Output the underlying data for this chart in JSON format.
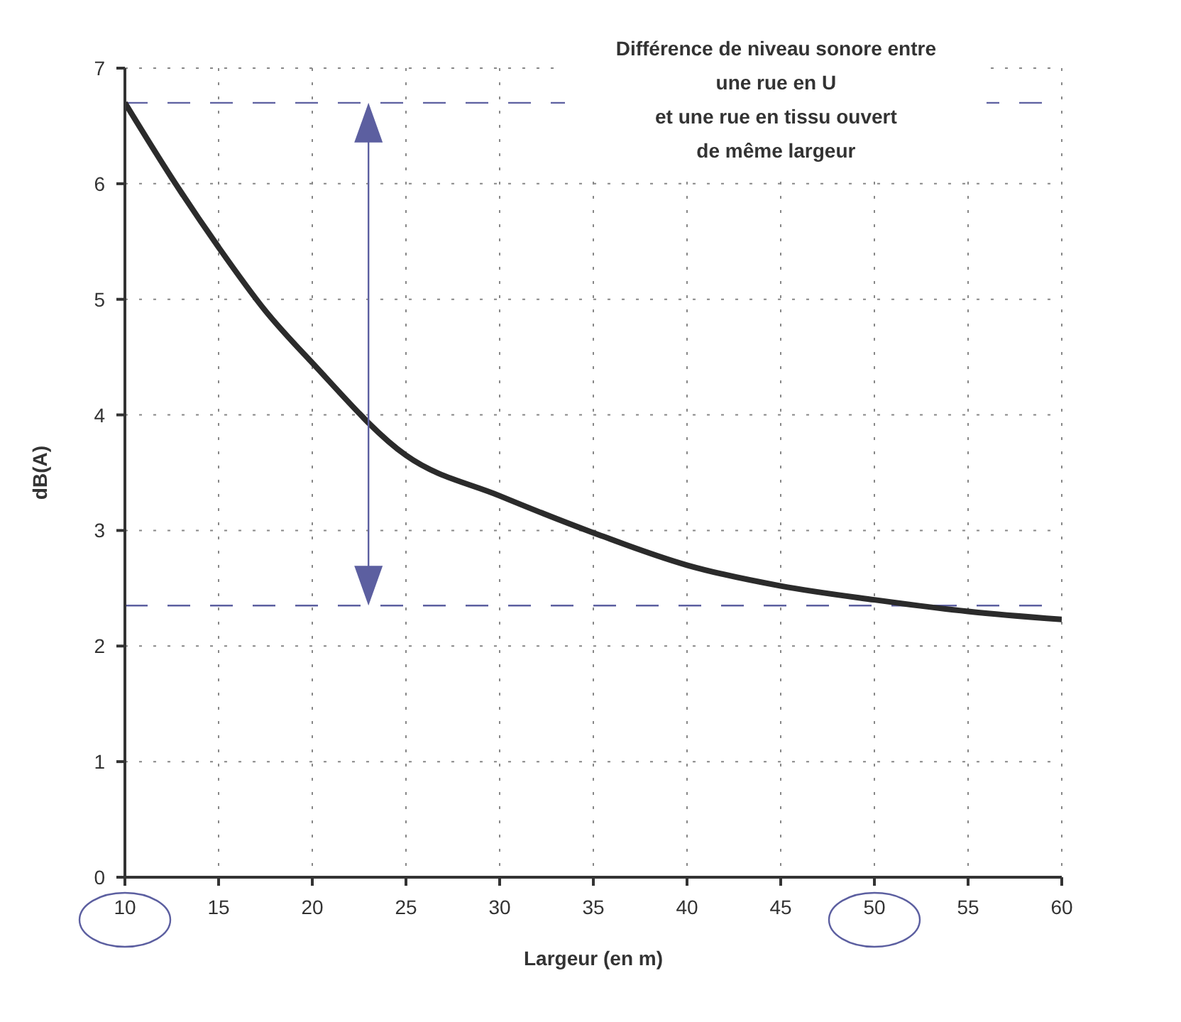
{
  "chart_data": {
    "type": "line",
    "title": "Différence de niveau sonore entre\nune rue en U\net une rue en tissu ouvert\nde même largeur",
    "xlabel": "Largeur (en m)",
    "ylabel": "dB(A)",
    "x": [
      10,
      12.5,
      15,
      17.5,
      20,
      25,
      30,
      35,
      40,
      45,
      50,
      55,
      60
    ],
    "series": [
      {
        "color": "#2b2b2b",
        "values": [
          6.7,
          6.05,
          5.45,
          4.9,
          4.45,
          3.65,
          3.3,
          2.98,
          2.7,
          2.52,
          2.4,
          2.3,
          2.23
        ]
      }
    ],
    "xlim": [
      10,
      60
    ],
    "xticks": [
      10,
      15,
      20,
      25,
      30,
      35,
      40,
      45,
      50,
      55,
      60
    ],
    "ylim": [
      0,
      7
    ],
    "yticks": [
      0,
      1,
      2,
      3,
      4,
      5,
      6,
      7
    ],
    "grid": true,
    "marker": "none",
    "line_style": "solid",
    "ref_lines": [
      {
        "axis": "y",
        "value": 6.7,
        "color": "#5c5fa0",
        "line_style": "dashed"
      },
      {
        "axis": "y",
        "value": 2.35,
        "color": "#5c5fa0",
        "line_style": "dashed"
      }
    ]
  }
}
